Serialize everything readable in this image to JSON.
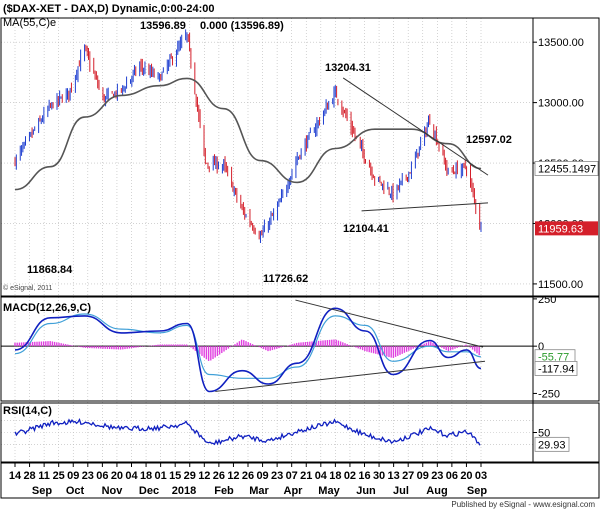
{
  "colors": {
    "price_up": "#1f3fd0",
    "price_down": "#d41f2a",
    "moving_average": "#555555",
    "macd_line": "#1020c0",
    "signal_line": "#40a0d8",
    "macd_histogram": "#e040e0",
    "rsi_line": "#1020c0",
    "trendline": "#333333",
    "last_price_box": "#ffffff",
    "last_close_box": "#d41f2a"
  },
  "header": {
    "title": "($DAX-XET - DAX,D) Dynamic,0:00-24:00",
    "indicator": "MA(55,C)e"
  },
  "footer": {
    "copyright": "© eSignal, 2011",
    "publisher": "Published by eSignal - www.esignal.com"
  },
  "chart_data": [
    {
      "type": "candlestick",
      "panel": "price",
      "ylim": [
        11400,
        13700
      ],
      "y_ticks": [
        11500,
        12000,
        12500,
        13000,
        13500
      ],
      "y_tick_labels": [
        "11500.00",
        "12000.00",
        "12500.00",
        "13000.00",
        "13500.00"
      ],
      "x_ticks": [
        "14",
        "28",
        "11",
        "25",
        "09",
        "23",
        "06",
        "20",
        "04",
        "18",
        "01",
        "15",
        "29",
        "12",
        "26",
        "12",
        "26",
        "09",
        "23",
        "07",
        "21",
        "04",
        "18",
        "02",
        "16",
        "30",
        "13",
        "27",
        "09",
        "23",
        "06",
        "20",
        "03"
      ],
      "x_month_labels": [
        "Sep",
        "Oct",
        "Nov",
        "Dec",
        "2018",
        "Feb",
        "Mar",
        "Apr",
        "May",
        "Jun",
        "Jul",
        "Aug",
        "Sep"
      ],
      "series": [
        {
          "name": "DAX",
          "x": [
            "2017-09-14",
            "2017-09-28",
            "2017-10-11",
            "2017-10-25",
            "2017-11-06",
            "2017-11-20",
            "2017-12-04",
            "2017-12-18",
            "2018-01-02",
            "2018-01-23",
            "2018-02-06",
            "2018-02-20",
            "2018-03-06",
            "2018-03-20",
            "2018-04-03",
            "2018-04-17",
            "2018-05-02",
            "2018-05-16",
            "2018-06-01",
            "2018-06-15",
            "2018-06-29",
            "2018-07-13",
            "2018-07-27",
            "2018-08-10",
            "2018-08-24",
            "2018-09-04"
          ],
          "close": [
            12520,
            12760,
            12970,
            13080,
            13450,
            13030,
            13100,
            13300,
            13200,
            13560,
            12500,
            12480,
            12110,
            11890,
            12150,
            12540,
            12820,
            13080,
            12700,
            12380,
            12240,
            12450,
            12860,
            12420,
            12470,
            11960
          ]
        },
        {
          "name": "MA(55,C)e",
          "x": [
            "2017-09-14",
            "2017-10-11",
            "2017-11-06",
            "2017-12-04",
            "2018-01-02",
            "2018-01-23",
            "2018-02-20",
            "2018-03-20",
            "2018-04-17",
            "2018-05-16",
            "2018-06-15",
            "2018-07-13",
            "2018-08-10",
            "2018-09-04"
          ],
          "values": [
            12280,
            12470,
            12880,
            13060,
            13140,
            13200,
            12950,
            12520,
            12340,
            12620,
            12780,
            12780,
            12660,
            12455
          ]
        }
      ],
      "annotations": {
        "high_label": "13596.89",
        "high_value": "0.000 (13596.89)",
        "may_high": "13204.31",
        "trendline_target": "12597.02",
        "support": "12104.41",
        "sep_2017_low": "11868.84",
        "mar_2018_low": "11726.62",
        "ma_value": "12455.1497",
        "last_close": "11959.63"
      },
      "trendlines": [
        {
          "from": [
            "2018-05-22",
            13204.31
          ],
          "to": [
            "2018-09-04",
            12400
          ]
        },
        {
          "from": [
            "2018-06-05",
            12104.41
          ],
          "to": [
            "2018-09-04",
            12170
          ]
        }
      ]
    },
    {
      "type": "line",
      "panel": "macd",
      "title": "MACD(12,26,9,C)",
      "ylim": [
        -290,
        260
      ],
      "y_tick_labels": [
        "250",
        "0",
        "-250"
      ],
      "y_ticks": [
        250,
        0,
        -250
      ],
      "series": [
        {
          "name": "MACD",
          "x": [
            "2017-09-14",
            "2017-10-11",
            "2017-11-06",
            "2017-12-04",
            "2018-01-02",
            "2018-01-23",
            "2018-02-09",
            "2018-03-06",
            "2018-03-26",
            "2018-04-17",
            "2018-05-16",
            "2018-06-08",
            "2018-06-29",
            "2018-07-27",
            "2018-08-10",
            "2018-08-24",
            "2018-09-04"
          ],
          "values": [
            -20,
            150,
            160,
            70,
            80,
            120,
            -240,
            -130,
            -200,
            -90,
            200,
            80,
            -150,
            30,
            -60,
            -20,
            -118
          ]
        },
        {
          "name": "Signal",
          "x": [
            "2017-09-14",
            "2017-10-11",
            "2017-11-06",
            "2017-12-04",
            "2018-01-02",
            "2018-01-23",
            "2018-02-09",
            "2018-03-06",
            "2018-03-26",
            "2018-04-17",
            "2018-05-16",
            "2018-06-08",
            "2018-06-29",
            "2018-07-27",
            "2018-08-10",
            "2018-08-24",
            "2018-09-04"
          ],
          "values": [
            -40,
            120,
            170,
            90,
            70,
            110,
            -150,
            -170,
            -170,
            -110,
            160,
            110,
            -80,
            0,
            -30,
            -30,
            -56
          ]
        }
      ],
      "value_labels": [
        "-55.77",
        "-117.94"
      ]
    },
    {
      "type": "line",
      "panel": "rsi",
      "title": "RSI(14,C)",
      "ylim": [
        0,
        100
      ],
      "y_ticks": [
        50
      ],
      "y_tick_labels": [
        "50"
      ],
      "series": [
        {
          "name": "RSI",
          "x": [
            "2017-09-14",
            "2017-10-11",
            "2017-11-06",
            "2017-12-04",
            "2018-01-02",
            "2018-01-23",
            "2018-02-09",
            "2018-03-06",
            "2018-03-26",
            "2018-04-17",
            "2018-05-16",
            "2018-06-08",
            "2018-06-29",
            "2018-07-27",
            "2018-08-10",
            "2018-08-24",
            "2018-09-04"
          ],
          "values": [
            47,
            66,
            68,
            56,
            58,
            65,
            30,
            44,
            36,
            52,
            68,
            46,
            34,
            56,
            45,
            52,
            30
          ]
        }
      ],
      "value_labels": [
        "29.93"
      ]
    }
  ]
}
